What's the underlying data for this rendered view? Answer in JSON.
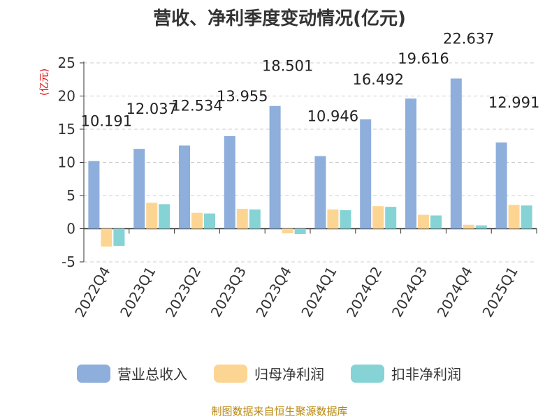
{
  "chart_data": {
    "type": "bar",
    "title": "营收、净利季度变动情况(亿元)",
    "ylabel": "(亿元)",
    "xlabel": "",
    "ylim": [
      -5,
      25
    ],
    "yticks": [
      -5,
      0,
      5,
      10,
      15,
      20,
      25
    ],
    "grid": true,
    "legend_position": "bottom",
    "categories": [
      "2022Q4",
      "2023Q1",
      "2023Q2",
      "2023Q3",
      "2023Q4",
      "2024Q1",
      "2024Q2",
      "2024Q3",
      "2024Q4",
      "2025Q1"
    ],
    "series": [
      {
        "name": "营业总收入",
        "color": "#8eaedc",
        "values": [
          10.191,
          12.037,
          12.534,
          13.955,
          18.501,
          10.946,
          16.492,
          19.616,
          22.637,
          12.991
        ],
        "labels": [
          "10.191",
          "12.037",
          "12.534",
          "13.955",
          "18.501",
          "10.946",
          "16.492",
          "19.616",
          "22.637",
          "12.991"
        ]
      },
      {
        "name": "归母净利润",
        "color": "#fdd593",
        "values": [
          -2.7,
          3.9,
          2.4,
          3.0,
          -0.7,
          2.9,
          3.4,
          2.1,
          0.6,
          3.6
        ]
      },
      {
        "name": "扣非净利润",
        "color": "#86d3d6",
        "values": [
          -2.6,
          3.7,
          2.3,
          2.9,
          -0.8,
          2.8,
          3.3,
          2.0,
          0.5,
          3.5
        ]
      }
    ]
  },
  "footer": "制图数据来自恒生聚源数据库"
}
